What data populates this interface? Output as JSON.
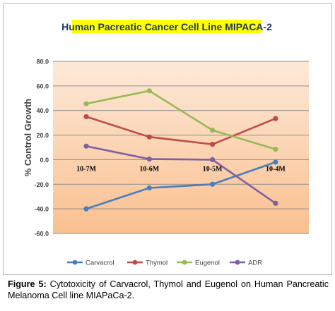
{
  "chart_data": {
    "type": "line",
    "title": "Human Pacreatic Cancer Cell Line MIPACA-2",
    "ylabel": "% Control Growth",
    "xlabel": "",
    "categories": [
      "10-7M",
      "10-6M",
      "10-5M",
      "10-4M"
    ],
    "ylim": [
      -60,
      80
    ],
    "yticks": [
      "80.0",
      "60.0",
      "40.0",
      "20.0",
      "0.0",
      "-20.0",
      "-40.0",
      "-60.0"
    ],
    "grid": true,
    "legend_position": "bottom",
    "series": [
      {
        "name": "Carvacrol",
        "values": [
          -40,
          -23,
          -20,
          -2
        ],
        "color": "#4a7ebb"
      },
      {
        "name": "Thymol",
        "values": [
          35,
          18.5,
          12.5,
          33.5
        ],
        "color": "#be4b48"
      },
      {
        "name": "Eugenol",
        "values": [
          45.5,
          56,
          24,
          8.5
        ],
        "color": "#98b954"
      },
      {
        "name": "ADR",
        "values": [
          11,
          0.5,
          0,
          -35.5
        ],
        "color": "#7d60a0"
      }
    ]
  },
  "caption": {
    "label": "Figure 5:",
    "text": " Cytotoxicity of Carvacrol, Thymol and Eugenol on Human Pancreatic Melanoma Cell line MIAPaCa-2."
  },
  "colors": {
    "title_highlight": "#ffff00",
    "plot_top": "#fde9d9",
    "plot_bottom": "#fac08f"
  }
}
